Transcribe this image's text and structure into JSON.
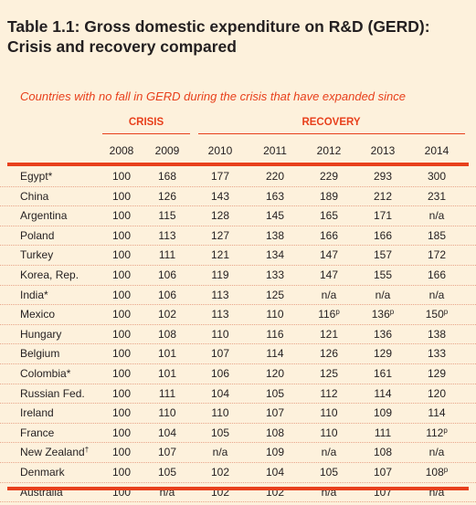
{
  "title_line1": "Table 1.1: Gross domestic expenditure on R&D (GERD):",
  "title_line2": "Crisis and recovery compared",
  "subtitle": "Countries with no fall in GERD during the crisis that have expanded since",
  "groups": {
    "crisis": "CRISIS",
    "recovery": "RECOVERY"
  },
  "years": [
    "2008",
    "2009",
    "2010",
    "2011",
    "2012",
    "2013",
    "2014"
  ],
  "rows": [
    {
      "country": "Egypt*",
      "values": [
        "100",
        "168",
        "177",
        "220",
        "229",
        "293",
        "300"
      ]
    },
    {
      "country": "China",
      "values": [
        "100",
        "126",
        "143",
        "163",
        "189",
        "212",
        "231"
      ]
    },
    {
      "country": "Argentina",
      "values": [
        "100",
        "115",
        "128",
        "145",
        "165",
        "171",
        "n/a"
      ]
    },
    {
      "country": "Poland",
      "values": [
        "100",
        "113",
        "127",
        "138",
        "166",
        "166",
        "185"
      ]
    },
    {
      "country": "Turkey",
      "values": [
        "100",
        "111",
        "121",
        "134",
        "147",
        "157",
        "172"
      ]
    },
    {
      "country": "Korea, Rep.",
      "values": [
        "100",
        "106",
        "119",
        "133",
        "147",
        "155",
        "166"
      ]
    },
    {
      "country": "India*",
      "values": [
        "100",
        "106",
        "113",
        "125",
        "n/a",
        "n/a",
        "n/a"
      ]
    },
    {
      "country": "Mexico",
      "values": [
        "100",
        "102",
        "113",
        "110",
        "116",
        "136",
        "150"
      ],
      "sup": [
        "",
        "",
        "",
        "",
        "p",
        "p",
        "p"
      ]
    },
    {
      "country": "Hungary",
      "values": [
        "100",
        "108",
        "110",
        "116",
        "121",
        "136",
        "138"
      ]
    },
    {
      "country": "Belgium",
      "values": [
        "100",
        "101",
        "107",
        "114",
        "126",
        "129",
        "133"
      ]
    },
    {
      "country": "Colombia*",
      "values": [
        "100",
        "101",
        "106",
        "120",
        "125",
        "161",
        "129"
      ]
    },
    {
      "country": "Russian Fed.",
      "values": [
        "100",
        "111",
        "104",
        "105",
        "112",
        "114",
        "120"
      ]
    },
    {
      "country": "Ireland",
      "values": [
        "100",
        "110",
        "110",
        "107",
        "110",
        "109",
        "114"
      ]
    },
    {
      "country": "France",
      "values": [
        "100",
        "104",
        "105",
        "108",
        "110",
        "111",
        "112"
      ],
      "sup": [
        "",
        "",
        "",
        "",
        "",
        "",
        "p"
      ]
    },
    {
      "country": "New Zealand",
      "country_sup": "†",
      "values": [
        "100",
        "107",
        "n/a",
        "109",
        "n/a",
        "108",
        "n/a"
      ]
    },
    {
      "country": "Denmark",
      "values": [
        "100",
        "105",
        "102",
        "104",
        "105",
        "107",
        "108"
      ],
      "sup": [
        "",
        "",
        "",
        "",
        "",
        "",
        "p"
      ]
    },
    {
      "country": "Australia",
      "values": [
        "100",
        "n/a",
        "102",
        "102",
        "n/a",
        "107",
        "n/a"
      ]
    }
  ],
  "colors": {
    "accent": "#e8401c",
    "background": "#fdf1dc",
    "text": "#231f20"
  }
}
